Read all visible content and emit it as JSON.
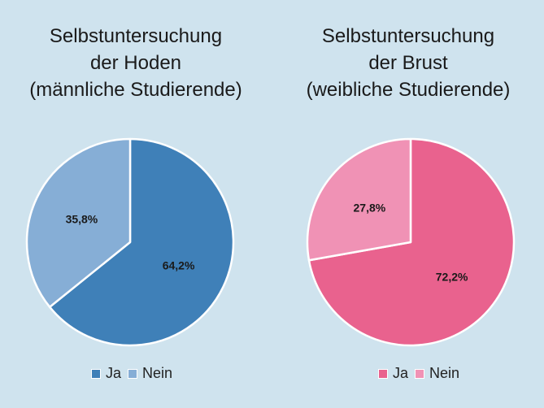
{
  "chart_data": [
    {
      "type": "pie",
      "title": [
        "Selbstuntersuchung",
        "der Hoden",
        "(männliche Studierende)"
      ],
      "labels": [
        "Ja",
        "Nein"
      ],
      "values": [
        64.2,
        35.8
      ],
      "value_labels": [
        "64,2%",
        "35,8%"
      ],
      "colors": [
        "#3f80b8",
        "#86aed6"
      ],
      "legend_position": "bottom"
    },
    {
      "type": "pie",
      "title": [
        "Selbstuntersuchung",
        "der Brust",
        "(weibliche Studierende)"
      ],
      "labels": [
        "Ja",
        "Nein"
      ],
      "values": [
        72.2,
        27.8
      ],
      "value_labels": [
        "72,2%",
        "27,8%"
      ],
      "colors": [
        "#e9628e",
        "#f092b5"
      ],
      "legend_position": "bottom"
    }
  ]
}
